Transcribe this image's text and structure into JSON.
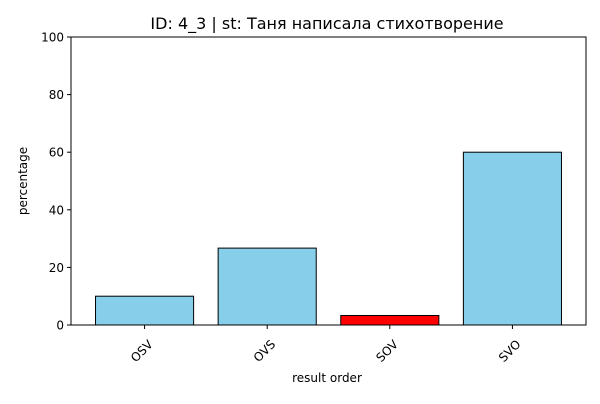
{
  "chart_data": {
    "type": "bar",
    "title": "ID: 4_3 | st: Таня написала стихотворение",
    "xlabel": "result order",
    "ylabel": "percentage",
    "categories": [
      "OSV",
      "OVS",
      "SOV",
      "SVO"
    ],
    "values": [
      10,
      26.7,
      3.3,
      60
    ],
    "bar_colors": [
      "#87CEEB",
      "#87CEEB",
      "#FF0000",
      "#87CEEB"
    ],
    "edge_color": "#000000",
    "ylim": [
      0,
      100
    ],
    "yticks": [
      0,
      20,
      40,
      60,
      80,
      100
    ],
    "grid": false,
    "legend": "none"
  }
}
